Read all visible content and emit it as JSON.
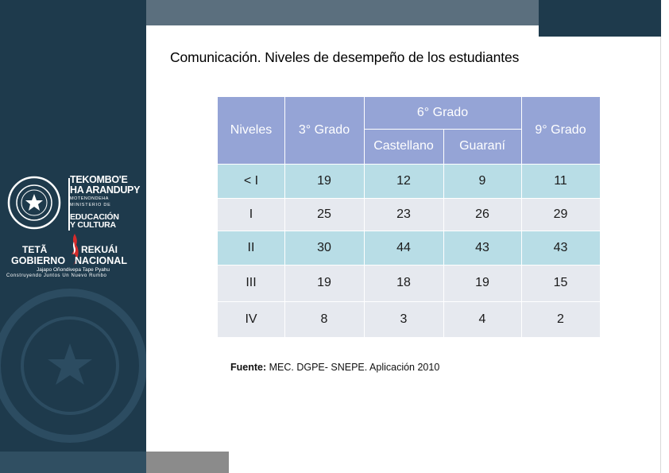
{
  "slide": {
    "title": "Comunicación. Niveles de desempeño de los estudiantes",
    "source_label": "Fuente:",
    "source_text": " MEC. DGPE- SNEPE. Aplicación 2010"
  },
  "branding": {
    "mec_line1": "TEKOMBO'E",
    "mec_line2": "HA ARANDUPY",
    "mec_line3": "MOTENONDEHA",
    "mec_line4": "MINISTERIO DE",
    "mec_line5": "",
    "mec_line6": "EDUCACIÓN",
    "mec_line7": "Y CULTURA",
    "gob_line1a": "TETÃ",
    "gob_line1b": "REKUÁI",
    "gob_line2a": "GOBIERNO",
    "gob_line2b": "NACIONAL",
    "gob_slogan1": "Jajapo Oñondivepa Tape Pyahu",
    "gob_slogan2": "Construyendo Juntos Un Nuevo Rumbo",
    "colors": {
      "sidebar": "#1e3a4c",
      "header": "#95a4d6",
      "row_blue": "#b8dde6",
      "row_gray": "#e6e9ef"
    }
  },
  "table": {
    "headers": {
      "niveles": "Niveles",
      "grado3": "3° Grado",
      "grado6": "6° Grado",
      "castellano": "Castellano",
      "guarani": "Guaraní",
      "grado9": "9° Grado"
    },
    "rows": [
      {
        "nivel": "< I",
        "g3": "19",
        "cast": "12",
        "guar": "9",
        "g9": "11"
      },
      {
        "nivel": "I",
        "g3": "25",
        "cast": "23",
        "guar": "26",
        "g9": "29"
      },
      {
        "nivel": "II",
        "g3": "30",
        "cast": "44",
        "guar": "43",
        "g9": "43"
      },
      {
        "nivel": "III",
        "g3": "19",
        "cast": "18",
        "guar": "19",
        "g9": "15"
      },
      {
        "nivel": "IV",
        "g3": "8",
        "cast": "3",
        "guar": "4",
        "g9": "2"
      }
    ]
  }
}
